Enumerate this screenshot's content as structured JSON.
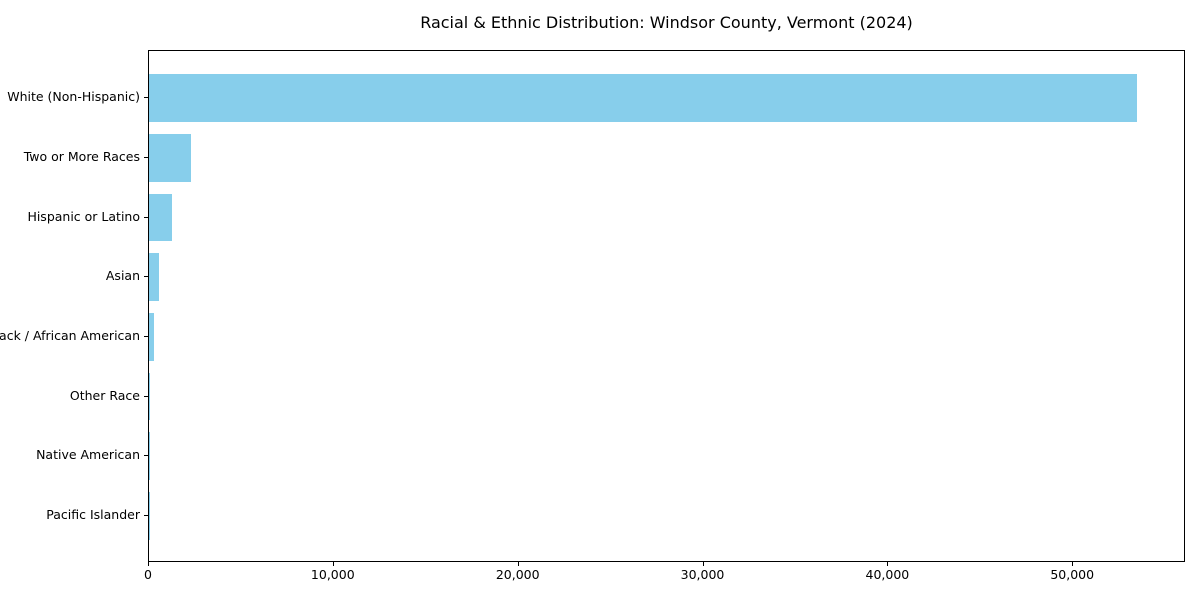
{
  "chart_data": {
    "type": "bar",
    "orientation": "horizontal",
    "title": "Racial & Ethnic Distribution: Windsor County, Vermont (2024)",
    "categories": [
      "White (Non-Hispanic)",
      "Two or More Races",
      "Hispanic or Latino",
      "Asian",
      "Black / African American",
      "Other Race",
      "Native American",
      "Pacific Islander"
    ],
    "values": [
      53450,
      2250,
      1250,
      550,
      270,
      80,
      40,
      10
    ],
    "xlabel": "",
    "ylabel": "",
    "xlim": [
      0,
      56100
    ],
    "xticks": [
      0,
      10000,
      20000,
      30000,
      40000,
      50000
    ],
    "xtick_labels": [
      "0",
      "10,000",
      "20,000",
      "30,000",
      "40,000",
      "50,000"
    ],
    "bar_color": "#87CEEB",
    "text_color": "#000000",
    "grid": false,
    "legend": "none"
  }
}
